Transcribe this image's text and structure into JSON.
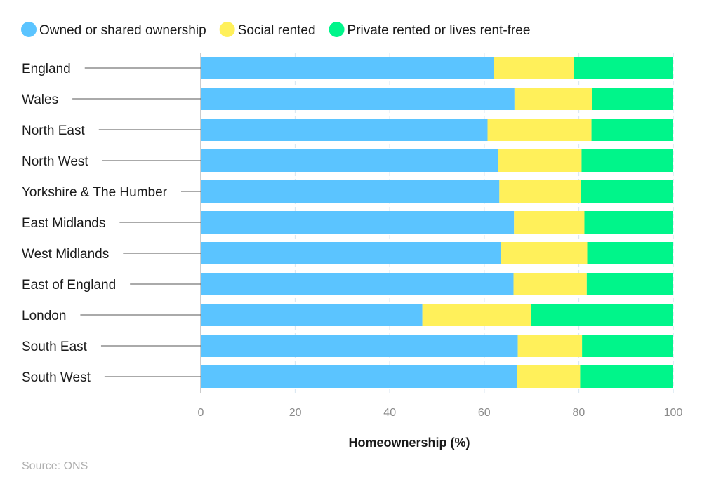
{
  "chart_data": {
    "type": "bar",
    "orientation": "horizontal",
    "stacked": true,
    "title": "",
    "xlabel": "Homeownership (%)",
    "ylabel": "",
    "xlim": [
      0,
      100
    ],
    "xticks": [
      "0",
      "20",
      "40",
      "60",
      "80",
      "100"
    ],
    "grid": true,
    "legend_position": "top-left",
    "source": "Source: ONS",
    "categories": [
      "England",
      "Wales",
      "North East",
      "North West",
      "Yorkshire & The Humber",
      "East Midlands",
      "West Midlands",
      "East of England",
      "London",
      "South East",
      "South West"
    ],
    "series": [
      {
        "name": "Owned or shared ownership",
        "color": "#5bc4ff",
        "values": [
          62.0,
          66.4,
          60.7,
          63.0,
          63.2,
          66.3,
          63.6,
          66.2,
          46.9,
          67.1,
          67.0
        ]
      },
      {
        "name": "Social rented",
        "color": "#fff05a",
        "values": [
          17.0,
          16.5,
          22.0,
          17.6,
          17.2,
          14.9,
          18.2,
          15.5,
          23.0,
          13.6,
          13.3
        ]
      },
      {
        "name": "Private rented or lives rent-free",
        "color": "#00f58a",
        "values": [
          21.0,
          17.1,
          17.3,
          19.4,
          19.6,
          18.8,
          18.2,
          18.3,
          30.1,
          19.3,
          19.7
        ]
      }
    ]
  }
}
